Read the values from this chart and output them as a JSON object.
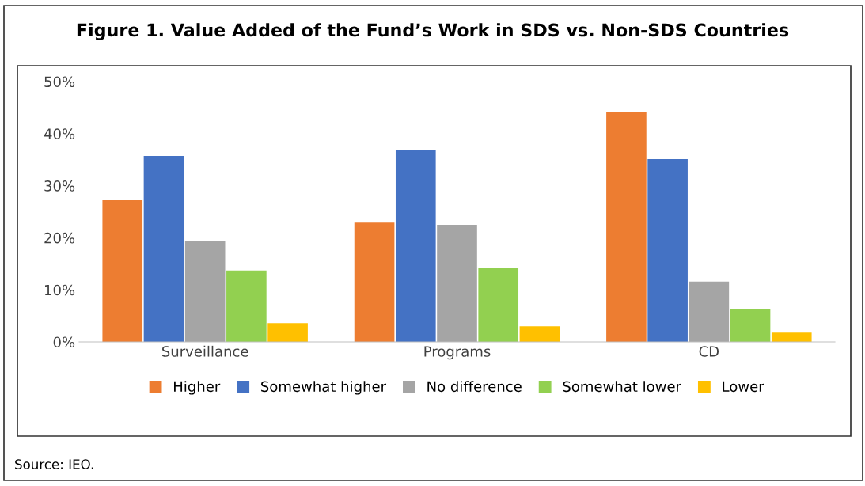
{
  "chart_data": {
    "type": "bar",
    "title": "Figure 1. Value Added of the Fund’s Work in SDS vs. Non-SDS Countries",
    "categories": [
      "Surveillance",
      "Programs",
      "CD"
    ],
    "series": [
      {
        "name": "Higher",
        "color": "#ed7d31",
        "values": [
          27.2,
          22.9,
          44.2
        ]
      },
      {
        "name": "Somewhat higher",
        "color": "#4472c4",
        "values": [
          35.7,
          36.9,
          35.1
        ]
      },
      {
        "name": "No difference",
        "color": "#a5a5a5",
        "values": [
          19.3,
          22.5,
          11.6
        ]
      },
      {
        "name": "Somewhat lower",
        "color": "#92d050",
        "values": [
          13.7,
          14.3,
          6.4
        ]
      },
      {
        "name": "Lower",
        "color": "#ffc000",
        "values": [
          3.6,
          3.0,
          1.8
        ]
      }
    ],
    "ylim": [
      0,
      50
    ],
    "yticks": [
      {
        "value": 0,
        "label": "0%"
      },
      {
        "value": 10,
        "label": "10%"
      },
      {
        "value": 20,
        "label": "20%"
      },
      {
        "value": 30,
        "label": "30%"
      },
      {
        "value": 40,
        "label": "40%"
      },
      {
        "value": 50,
        "label": "50%"
      }
    ],
    "grid": false,
    "legend": "bottom",
    "annotations": [
      "Source: IEO."
    ]
  }
}
